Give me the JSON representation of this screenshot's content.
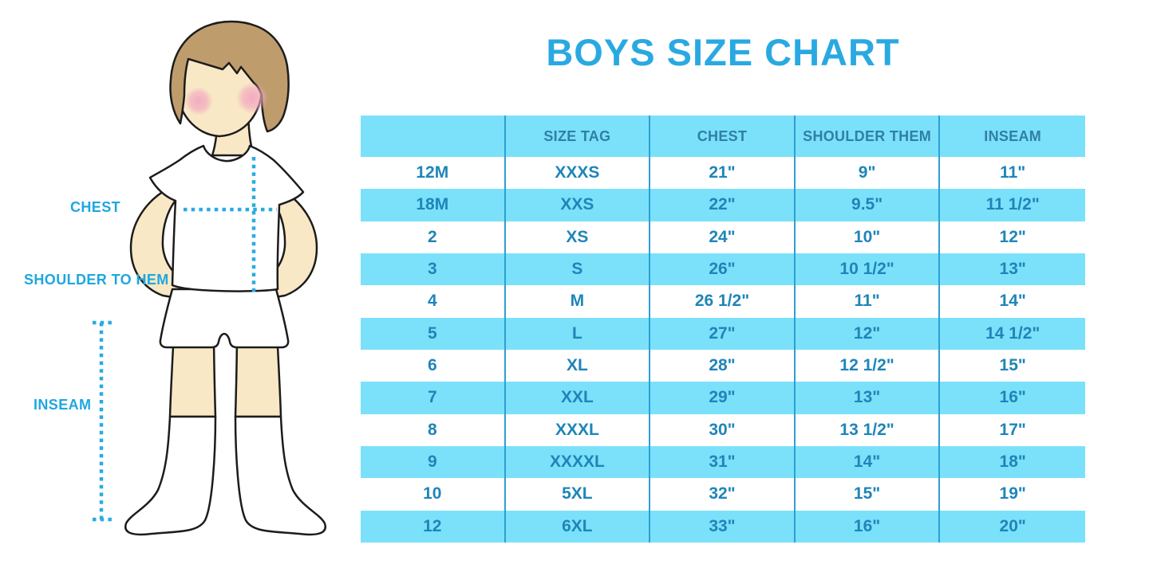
{
  "title": "BOYS SIZE CHART",
  "diagram": {
    "figure": "boy-in-tshirt-shorts-and-socks",
    "labels": {
      "chest": "CHEST",
      "shoulder_to_hem": "SHOULDER TO HEM",
      "inseam": "INSEAM"
    }
  },
  "colors": {
    "accent_blue": "#29A9E1",
    "table_fill_blue": "#7BE1FA",
    "divider_blue": "#2E9FD3",
    "header_text": "#2F7FA6",
    "cell_text": "#1F85B8",
    "dotted_line": "#29ABE2",
    "skin": "#F9E8C6",
    "hair": "#BF9C6C",
    "blush": "#F2A9C0",
    "outline": "#1C1C1C"
  },
  "chart_data": {
    "type": "table",
    "title": "BOYS SIZE CHART",
    "columns": [
      "",
      "SIZE TAG",
      "CHEST",
      "SHOULDER THEM",
      "INSEAM"
    ],
    "rows": [
      [
        "12M",
        "XXXS",
        "21\"",
        "9\"",
        "11\""
      ],
      [
        "18M",
        "XXS",
        "22\"",
        "9.5\"",
        "11 1/2\""
      ],
      [
        "2",
        "XS",
        "24\"",
        "10\"",
        "12\""
      ],
      [
        "3",
        "S",
        "26\"",
        "10 1/2\"",
        "13\""
      ],
      [
        "4",
        "M",
        "26 1/2\"",
        "11\"",
        "14\""
      ],
      [
        "5",
        "L",
        "27\"",
        "12\"",
        "14 1/2\""
      ],
      [
        "6",
        "XL",
        "28\"",
        "12 1/2\"",
        "15\""
      ],
      [
        "7",
        "XXL",
        "29\"",
        "13\"",
        "16\""
      ],
      [
        "8",
        "XXXL",
        "30\"",
        "13 1/2\"",
        "17\""
      ],
      [
        "9",
        "XXXXL",
        "31\"",
        "14\"",
        "18\""
      ],
      [
        "10",
        "5XL",
        "32\"",
        "15\"",
        "19\""
      ],
      [
        "12",
        "6XL",
        "33\"",
        "16\"",
        "20\""
      ]
    ]
  }
}
